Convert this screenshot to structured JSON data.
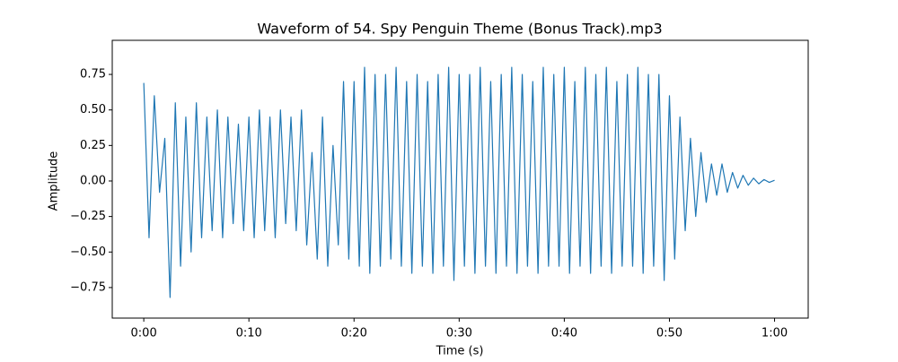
{
  "chart_data": {
    "type": "line",
    "title": "Waveform of 54. Spy Penguin Theme (Bonus Track).mp3",
    "x_label": "Time (s)",
    "y_label": "Amplitude",
    "color": "#1f77b4",
    "xlim": [
      -3.0,
      63.2
    ],
    "ylim": [
      -0.965,
      0.99
    ],
    "xticks": [
      {
        "value": 0,
        "label": "0:00"
      },
      {
        "value": 10,
        "label": "0:10"
      },
      {
        "value": 20,
        "label": "0:20"
      },
      {
        "value": 30,
        "label": "0:30"
      },
      {
        "value": 40,
        "label": "0:40"
      },
      {
        "value": 50,
        "label": "0:50"
      },
      {
        "value": 60,
        "label": "1:00"
      }
    ],
    "yticks": [
      {
        "value": -0.75,
        "label": "−0.75"
      },
      {
        "value": -0.5,
        "label": "−0.50"
      },
      {
        "value": -0.25,
        "label": "−0.25"
      },
      {
        "value": 0,
        "label": "0.00"
      },
      {
        "value": 0.25,
        "label": "0.25"
      },
      {
        "value": 0.5,
        "label": "0.50"
      },
      {
        "value": 0.75,
        "label": "0.75"
      }
    ],
    "x": [
      0,
      0.5,
      1,
      1.5,
      2,
      2.5,
      3,
      3.5,
      4,
      4.5,
      5,
      5.5,
      6,
      6.5,
      7,
      7.5,
      8,
      8.5,
      9,
      9.5,
      10,
      10.5,
      11,
      11.5,
      12,
      12.5,
      13,
      13.5,
      14,
      14.5,
      15,
      15.5,
      16,
      16.5,
      17,
      17.5,
      18,
      18.5,
      19,
      19.5,
      20,
      20.5,
      21,
      21.5,
      22,
      22.5,
      23,
      23.5,
      24,
      24.5,
      25,
      25.5,
      26,
      26.5,
      27,
      27.5,
      28,
      28.5,
      29,
      29.5,
      30,
      30.5,
      31,
      31.5,
      32,
      32.5,
      33,
      33.5,
      34,
      34.5,
      35,
      35.5,
      36,
      36.5,
      37,
      37.5,
      38,
      38.5,
      39,
      39.5,
      40,
      40.5,
      41,
      41.5,
      42,
      42.5,
      43,
      43.5,
      44,
      44.5,
      45,
      45.5,
      46,
      46.5,
      47,
      47.5,
      48,
      48.5,
      49,
      49.5,
      50,
      50.5,
      51,
      51.5,
      52,
      52.5,
      53,
      53.5,
      54,
      54.5,
      55,
      55.5,
      56,
      56.5,
      57,
      57.5,
      58,
      58.5,
      59,
      59.5,
      60
    ],
    "values": [
      0.69,
      -0.4,
      0.6,
      -0.08,
      0.3,
      -0.82,
      0.55,
      -0.6,
      0.45,
      -0.5,
      0.55,
      -0.4,
      0.45,
      -0.35,
      0.5,
      -0.4,
      0.45,
      -0.3,
      0.4,
      -0.35,
      0.45,
      -0.4,
      0.5,
      -0.35,
      0.45,
      -0.4,
      0.5,
      -0.3,
      0.45,
      -0.35,
      0.5,
      -0.45,
      0.2,
      -0.55,
      0.45,
      -0.6,
      0.25,
      -0.45,
      0.7,
      -0.55,
      0.7,
      -0.6,
      0.8,
      -0.65,
      0.75,
      -0.6,
      0.75,
      -0.55,
      0.8,
      -0.6,
      0.7,
      -0.65,
      0.75,
      -0.6,
      0.7,
      -0.65,
      0.75,
      -0.6,
      0.8,
      -0.7,
      0.75,
      -0.6,
      0.75,
      -0.65,
      0.8,
      -0.6,
      0.7,
      -0.65,
      0.75,
      -0.6,
      0.8,
      -0.65,
      0.75,
      -0.6,
      0.7,
      -0.65,
      0.8,
      -0.6,
      0.75,
      -0.6,
      0.8,
      -0.65,
      0.7,
      -0.6,
      0.8,
      -0.65,
      0.75,
      -0.6,
      0.8,
      -0.65,
      0.7,
      -0.6,
      0.75,
      -0.6,
      0.8,
      -0.65,
      0.75,
      -0.6,
      0.75,
      -0.7,
      0.6,
      -0.55,
      0.45,
      -0.35,
      0.3,
      -0.25,
      0.2,
      -0.15,
      0.12,
      -0.1,
      0.12,
      -0.08,
      0.06,
      -0.05,
      0.04,
      -0.03,
      0.02,
      -0.02,
      0.01,
      -0.01,
      0.005
    ]
  }
}
